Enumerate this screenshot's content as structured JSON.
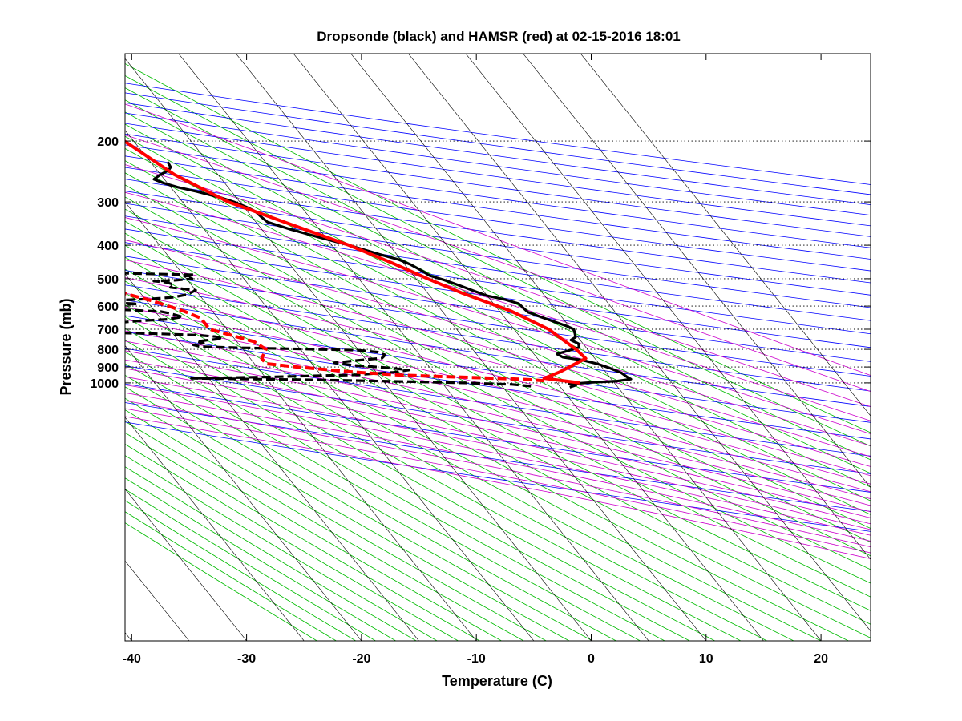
{
  "chart_data": {
    "type": "line",
    "title": "Dropsonde (black) and HAMSR (red) at 02-15-2016 18:01",
    "xlabel": "Temperature (C)",
    "ylabel": "Pressure (mb)",
    "x_ticks": [
      "-40",
      "-30",
      "-20",
      "-10",
      "0",
      "10",
      "20"
    ],
    "y_ticks": [
      "200",
      "300",
      "400",
      "500",
      "600",
      "700",
      "800",
      "900",
      "1000"
    ],
    "xlim": [
      -40,
      24
    ],
    "ylim": [
      1050,
      150
    ],
    "y_scale": "log",
    "skew": "skew-T diagram with dotted horizontal isobars, black skewed isotherms, blue dry adiabats, magenta moist adiabats, green mixing-ratio lines",
    "colors": {
      "dropsonde": "#000000",
      "hamsr": "#ff0000",
      "isotherms": "#000000",
      "dry_adiabats": "#0000ff",
      "moist_adiabats": "#cc00cc",
      "mixing_ratio": "#00bb00"
    },
    "series": [
      {
        "name": "Dropsonde temperature",
        "style": "solid",
        "color": "#000000",
        "points": [
          [
            -3.5,
            230
          ],
          [
            -3.6,
            238
          ],
          [
            -4.0,
            243
          ],
          [
            -5.0,
            250
          ],
          [
            -5.9,
            258
          ],
          [
            -5.4,
            264
          ],
          [
            -4.4,
            272
          ],
          [
            -3.0,
            280
          ],
          [
            -1.3,
            292
          ],
          [
            -0.5,
            300
          ],
          [
            0.2,
            310
          ],
          [
            0.7,
            320
          ],
          [
            0.8,
            330
          ],
          [
            1.0,
            343
          ],
          [
            2.5,
            360
          ],
          [
            4.5,
            380
          ],
          [
            6.5,
            400
          ],
          [
            8.5,
            425
          ],
          [
            9.8,
            440
          ],
          [
            10.5,
            455
          ],
          [
            11.0,
            472
          ],
          [
            11.4,
            490
          ],
          [
            12.4,
            505
          ],
          [
            13.4,
            525
          ],
          [
            14.3,
            545
          ],
          [
            15.0,
            560
          ],
          [
            16.3,
            575
          ],
          [
            17.2,
            590
          ],
          [
            17.3,
            610
          ],
          [
            17.4,
            625
          ],
          [
            18.2,
            645
          ],
          [
            19.0,
            665
          ],
          [
            19.8,
            685
          ],
          [
            20.2,
            700
          ],
          [
            20.0,
            720
          ],
          [
            19.8,
            738
          ],
          [
            19.2,
            752
          ],
          [
            19.6,
            770
          ],
          [
            19.4,
            790
          ],
          [
            18.2,
            808
          ],
          [
            17.0,
            825
          ],
          [
            17.3,
            843
          ],
          [
            18.8,
            860
          ],
          [
            19.8,
            880
          ],
          [
            20.6,
            905
          ],
          [
            21.3,
            935
          ],
          [
            21.5,
            960
          ],
          [
            21.7,
            975
          ],
          [
            20.4,
            988
          ],
          [
            18.0,
            997
          ],
          [
            16.0,
            1008
          ],
          [
            16.5,
            1015
          ],
          [
            15.8,
            1030
          ]
        ]
      },
      {
        "name": "Dropsonde dewpoint",
        "style": "dashed",
        "color": "#000000",
        "points": [
          [
            -37.0,
            230
          ],
          [
            -35.0,
            236
          ],
          [
            -33.0,
            245
          ],
          [
            -29.0,
            255
          ],
          [
            -24.0,
            262
          ],
          [
            -19.5,
            270
          ],
          [
            -18.0,
            280
          ],
          [
            -18.5,
            290
          ],
          [
            -21.0,
            305
          ],
          [
            -22.5,
            310
          ],
          [
            -23.5,
            318
          ],
          [
            -20.0,
            324
          ],
          [
            -18.0,
            331
          ],
          [
            -19.0,
            336
          ],
          [
            -26.0,
            345
          ],
          [
            -32.0,
            350
          ],
          [
            -32.0,
            360
          ],
          [
            -30.0,
            366
          ],
          [
            -25.0,
            372
          ],
          [
            -23.5,
            380
          ],
          [
            -22.0,
            392
          ],
          [
            -21.5,
            400
          ],
          [
            -22.0,
            405
          ],
          [
            -23.0,
            416
          ],
          [
            -21.0,
            423
          ],
          [
            -18.5,
            427
          ],
          [
            -21.0,
            433
          ],
          [
            -23.0,
            440
          ],
          [
            -24.5,
            446
          ],
          [
            -24.0,
            453
          ],
          [
            -25.5,
            458
          ],
          [
            -27.0,
            462
          ],
          [
            -31.0,
            467
          ],
          [
            -34.0,
            472
          ],
          [
            -28.0,
            474
          ],
          [
            -20.0,
            477
          ],
          [
            -13.0,
            484
          ],
          [
            -9.0,
            487
          ],
          [
            -10.0,
            492
          ],
          [
            -9.5,
            500
          ],
          [
            -11.0,
            505
          ],
          [
            -13.0,
            508
          ],
          [
            -12.0,
            512
          ],
          [
            -11.5,
            520
          ],
          [
            -12.0,
            530
          ],
          [
            -10.0,
            540
          ],
          [
            -11.0,
            555
          ],
          [
            -12.5,
            566
          ],
          [
            -14.5,
            572
          ],
          [
            -17.5,
            577
          ],
          [
            -22.0,
            580
          ],
          [
            -18.5,
            585
          ],
          [
            -16.0,
            591
          ],
          [
            -20.0,
            597
          ],
          [
            -24.0,
            602
          ],
          [
            -26.5,
            607
          ],
          [
            -21.0,
            611
          ],
          [
            -17.0,
            616
          ],
          [
            -14.5,
            622
          ],
          [
            -14.0,
            628
          ],
          [
            -13.5,
            636
          ],
          [
            -13.0,
            645
          ],
          [
            -14.5,
            655
          ],
          [
            -17.0,
            662
          ],
          [
            -19.0,
            670
          ],
          [
            -20.0,
            677
          ],
          [
            -21.0,
            685
          ],
          [
            -22.0,
            692
          ],
          [
            -26.0,
            698
          ],
          [
            -30.0,
            704
          ],
          [
            -25.0,
            711
          ],
          [
            -20.0,
            717
          ],
          [
            -16.0,
            722
          ],
          [
            -13.0,
            728
          ],
          [
            -11.5,
            735
          ],
          [
            -11.0,
            745
          ],
          [
            -12.5,
            753
          ],
          [
            -13.5,
            760
          ],
          [
            -13.0,
            768
          ],
          [
            -14.0,
            777
          ],
          [
            -13.5,
            786
          ],
          [
            -10.0,
            792
          ],
          [
            -5.0,
            798
          ],
          [
            0.0,
            805
          ],
          [
            1.5,
            815
          ],
          [
            2.0,
            830
          ],
          [
            1.5,
            848
          ],
          [
            -1.0,
            862
          ],
          [
            -3.0,
            875
          ],
          [
            -1.5,
            890
          ],
          [
            1.5,
            905
          ],
          [
            3.0,
            918
          ],
          [
            1.5,
            932
          ],
          [
            -2.0,
            948
          ],
          [
            -10.0,
            962
          ],
          [
            -16.5,
            970
          ],
          [
            -11.0,
            975
          ],
          [
            -6.0,
            980
          ],
          [
            -2.0,
            985
          ],
          [
            2.5,
            992
          ],
          [
            7.0,
            1000
          ],
          [
            11.0,
            1010
          ],
          [
            12.5,
            1022
          ]
        ]
      },
      {
        "name": "HAMSR temperature",
        "style": "solid",
        "color": "#ff0000",
        "points": [
          [
            -5.4,
            145
          ],
          [
            -5.8,
            200
          ],
          [
            -3.8,
            250
          ],
          [
            -1.0,
            300
          ],
          [
            3.0,
            350
          ],
          [
            6.5,
            400
          ],
          [
            9.0,
            450
          ],
          [
            11.0,
            500
          ],
          [
            13.0,
            550
          ],
          [
            16.0,
            620
          ],
          [
            18.0,
            700
          ],
          [
            19.0,
            800
          ],
          [
            19.2,
            850
          ],
          [
            16.0,
            930
          ],
          [
            14.2,
            970
          ],
          [
            17.0,
            1000
          ]
        ]
      },
      {
        "name": "HAMSR dewpoint",
        "style": "dashed",
        "color": "#ff0000",
        "points": [
          [
            -20.5,
            145
          ],
          [
            -20.5,
            200
          ],
          [
            -18.0,
            260
          ],
          [
            -18.0,
            300
          ],
          [
            -19.0,
            350
          ],
          [
            -17.0,
            400
          ],
          [
            -15.5,
            460
          ],
          [
            -16.5,
            500
          ],
          [
            -16.5,
            550
          ],
          [
            -14.5,
            580
          ],
          [
            -12.5,
            620
          ],
          [
            -11.5,
            650
          ],
          [
            -11.5,
            700
          ],
          [
            -8.5,
            760
          ],
          [
            -8.0,
            800
          ],
          [
            -9.0,
            850
          ],
          [
            -9.0,
            880
          ],
          [
            -6.5,
            900
          ],
          [
            -2.0,
            930
          ],
          [
            2.0,
            950
          ],
          [
            8.0,
            965
          ],
          [
            12.0,
            975
          ],
          [
            14.0,
            985
          ]
        ]
      }
    ]
  }
}
